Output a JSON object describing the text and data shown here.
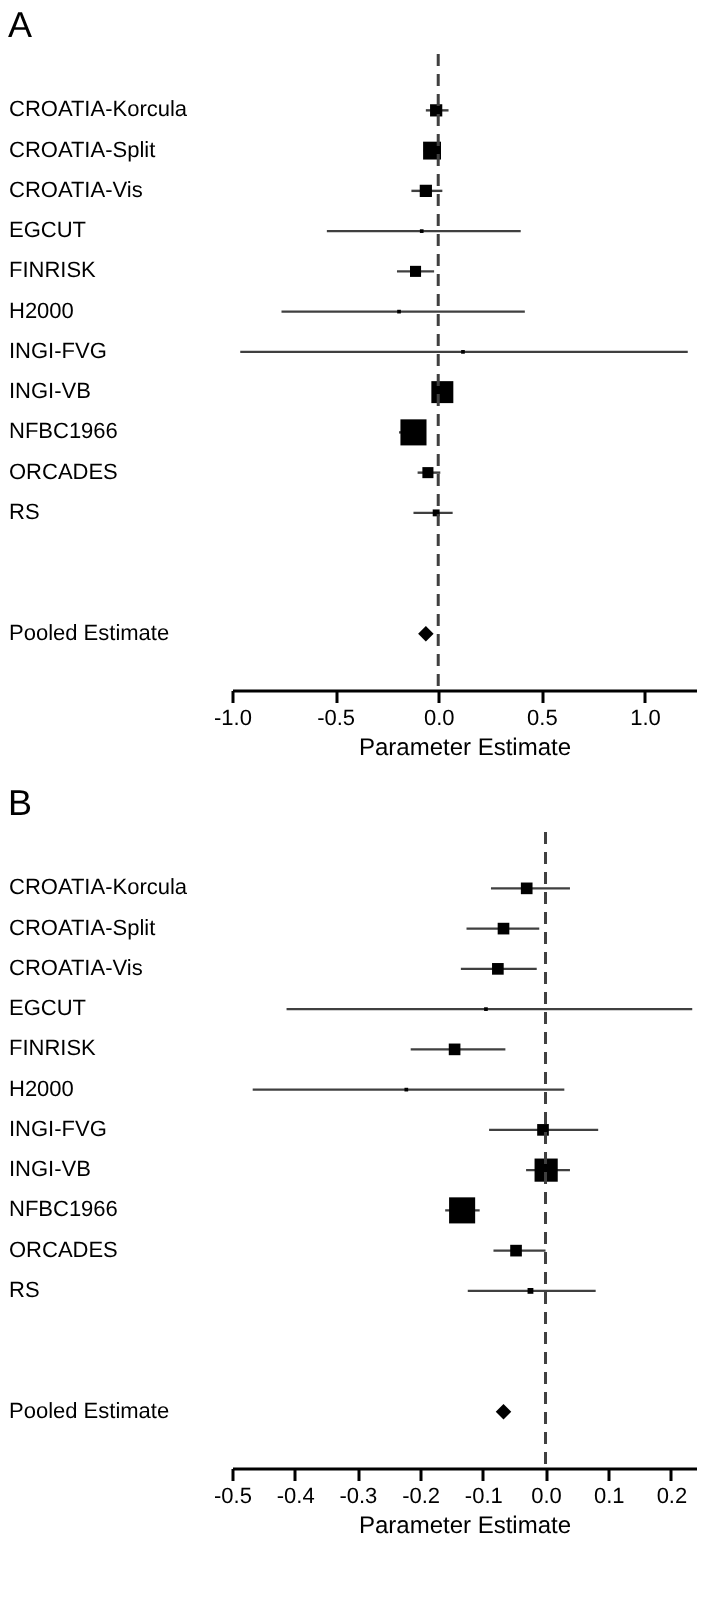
{
  "chart_data": [
    {
      "type": "bubble",
      "orientation": "horizontal",
      "title": "A",
      "xlabel": "Parameter Estimate",
      "categories": [
        "CROATIA-Korcula",
        "CROATIA-Split",
        "CROATIA-Vis",
        "EGCUT",
        "FINRISK",
        "H2000",
        "INGI-FVG",
        "INGI-VB",
        "NFBC1966",
        "ORCADES",
        "RS",
        null,
        null,
        "Pooled Estimate"
      ],
      "xlim": [
        -1.0,
        1.25
      ],
      "xticks": [
        {
          "value": -1.0,
          "label": "-1.0"
        },
        {
          "value": -0.5,
          "label": "-0.5"
        },
        {
          "value": 0.0,
          "label": "0.0"
        },
        {
          "value": 0.5,
          "label": "0.5"
        },
        {
          "value": 1.0,
          "label": "1.0"
        }
      ],
      "ref_lines": [
        {
          "axis": "x",
          "value": 0,
          "line_style": "dashed",
          "color": "#404040"
        }
      ],
      "marker": "square",
      "grid": false,
      "legend": false,
      "series": [
        {
          "color": "#000000",
          "values": [
            -0.01,
            -0.03,
            -0.06,
            -0.08,
            -0.11,
            -0.19,
            0.12,
            0.02,
            -0.12,
            -0.05,
            -0.01,
            null,
            null,
            null
          ],
          "sizes": [
            0.22,
            0.47,
            0.22,
            0.02,
            0.18,
            0.02,
            0.02,
            0.71,
            1,
            0.18,
            0.07,
            null,
            null,
            null
          ],
          "errors": [
            [
              -0.06,
              0.05
            ],
            [
              -0.07,
              0.01
            ],
            [
              -0.13,
              0.02
            ],
            [
              -0.54,
              0.4
            ],
            [
              -0.2,
              -0.02
            ],
            [
              -0.76,
              0.42
            ],
            [
              -0.96,
              1.21
            ],
            [
              -0.03,
              0.07
            ],
            [
              -0.19,
              -0.06
            ],
            [
              -0.1,
              0.01
            ],
            [
              -0.12,
              0.07
            ],
            null,
            null,
            null
          ]
        },
        {
          "type": "scatter",
          "marker": "diamond",
          "color": "#000000",
          "values": [
            null,
            null,
            null,
            null,
            null,
            null,
            null,
            null,
            null,
            null,
            null,
            null,
            null,
            -0.06
          ]
        }
      ]
    },
    {
      "type": "bubble",
      "orientation": "horizontal",
      "title": "B",
      "xlabel": "Parameter Estimate",
      "categories": [
        "CROATIA-Korcula",
        "CROATIA-Split",
        "CROATIA-Vis",
        "EGCUT",
        "FINRISK",
        "H2000",
        "INGI-FVG",
        "INGI-VB",
        "NFBC1966",
        "ORCADES",
        "RS",
        null,
        null,
        "Pooled Estimate"
      ],
      "xlim": [
        -0.5,
        0.24
      ],
      "xticks": [
        {
          "value": -0.5,
          "label": "-0.5"
        },
        {
          "value": -0.4,
          "label": "-0.4"
        },
        {
          "value": -0.3,
          "label": "-0.3"
        },
        {
          "value": -0.2,
          "label": "-0.2"
        },
        {
          "value": -0.1,
          "label": "-0.1"
        },
        {
          "value": 0.0,
          "label": "0.0"
        },
        {
          "value": 0.1,
          "label": "0.1"
        },
        {
          "value": 0.2,
          "label": "0.2"
        }
      ],
      "ref_lines": [
        {
          "axis": "x",
          "value": 0,
          "line_style": "dashed",
          "color": "#404040"
        }
      ],
      "marker": "square",
      "grid": false,
      "legend": false,
      "series": [
        {
          "color": "#000000",
          "values": [
            -0.03,
            -0.067,
            -0.076,
            -0.095,
            -0.145,
            -0.222,
            -0.004,
            0.001,
            -0.133,
            -0.047,
            -0.024,
            null,
            null,
            null
          ],
          "sizes": [
            0.2,
            0.2,
            0.2,
            0.02,
            0.2,
            0.02,
            0.2,
            0.79,
            1,
            0.2,
            0.05,
            null,
            null,
            null
          ],
          "errors": [
            [
              -0.087,
              0.039
            ],
            [
              -0.126,
              -0.01
            ],
            [
              -0.135,
              -0.014
            ],
            [
              -0.413,
              0.234
            ],
            [
              -0.215,
              -0.064
            ],
            [
              -0.467,
              0.03
            ],
            [
              -0.09,
              0.084
            ],
            [
              -0.031,
              0.039
            ],
            [
              -0.16,
              -0.105
            ],
            [
              -0.083,
              0.0
            ],
            [
              -0.124,
              0.08
            ],
            null,
            null,
            null
          ]
        },
        {
          "type": "scatter",
          "marker": "diamond",
          "color": "#000000",
          "values": [
            null,
            null,
            null,
            null,
            null,
            null,
            null,
            null,
            null,
            null,
            null,
            null,
            null,
            -0.067
          ]
        }
      ]
    }
  ]
}
